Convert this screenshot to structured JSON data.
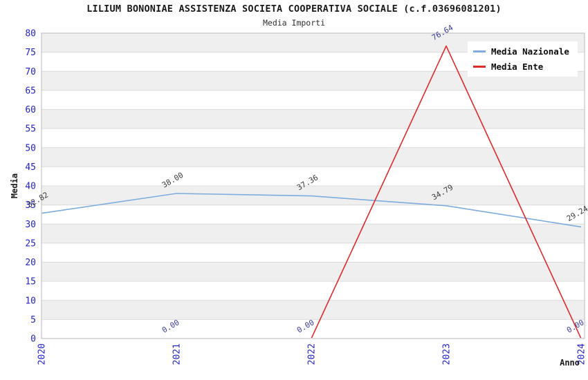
{
  "header": {
    "title": "LILIUM BONONIAE ASSISTENZA SOCIETA COOPERATIVA SOCIALE (c.f.03696081201)",
    "subtitle": "Media Importi"
  },
  "legend": {
    "items": [
      {
        "label": "Media Nazionale",
        "color": "#7dacdd"
      },
      {
        "label": "Media Ente",
        "color": "#e02929"
      }
    ]
  },
  "axes": {
    "y_label": "Media",
    "x_label": "Anno",
    "tick_color": "#2323cd"
  },
  "chart_data": {
    "type": "line",
    "title": "LILIUM BONONIAE ASSISTENZA SOCIETA COOPERATIVA SOCIALE (c.f.03696081201)",
    "subtitle": "Media Importi",
    "xlabel": "Anno",
    "ylabel": "Media",
    "ylim": [
      0,
      80
    ],
    "ytick_step": 5,
    "xticks": [
      2020,
      2021,
      2022,
      2023,
      2024
    ],
    "grid": true,
    "legend_position": "top-right",
    "band_colors": [
      "#ffffff",
      "#efefef"
    ],
    "series": [
      {
        "name": "Media Nazionale",
        "color": "#7dacdd",
        "label_color": "#3d3d3d",
        "points": [
          {
            "x": 2020,
            "y": 32.82
          },
          {
            "x": 2021,
            "y": 38.0
          },
          {
            "x": 2022,
            "y": 37.36
          },
          {
            "x": 2023,
            "y": 34.79
          },
          {
            "x": 2024,
            "y": 29.24
          }
        ]
      },
      {
        "name": "Media Ente",
        "color": "#e02929",
        "label_color": "#3c3c9e",
        "points": [
          {
            "x": 2021,
            "y": 0.0
          },
          {
            "x": 2022,
            "y": 0.0
          },
          {
            "x": 2023,
            "y": 76.64
          },
          {
            "x": 2024,
            "y": 0.0
          }
        ]
      }
    ]
  }
}
